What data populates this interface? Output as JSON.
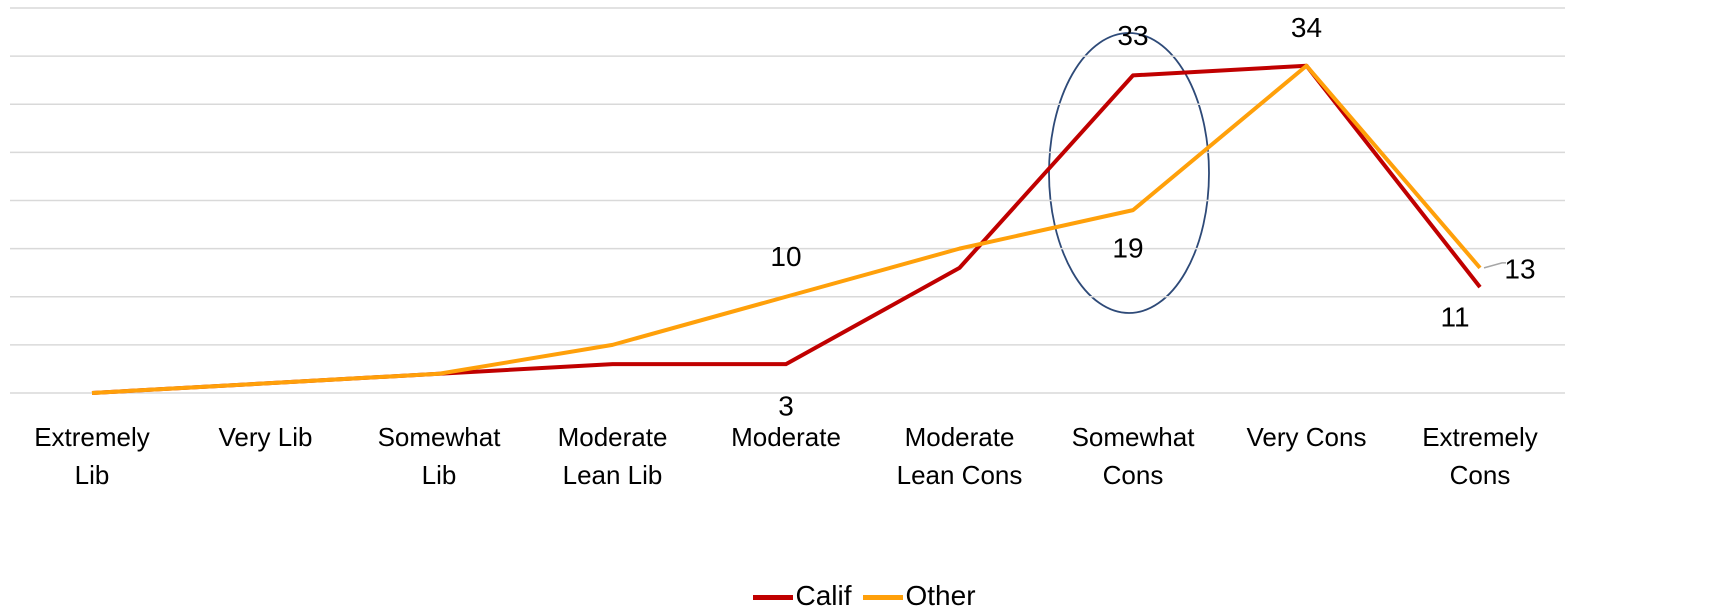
{
  "chart_data": {
    "type": "line",
    "categories": [
      "Extremely Lib",
      "Very Lib",
      "Somewhat Lib",
      "Moderate Lean Lib",
      "Moderate",
      "Moderate Lean Cons",
      "Somewhat Cons",
      "Very Cons",
      "Extremely Cons"
    ],
    "series": [
      {
        "name": "Calif",
        "color": "#c00000",
        "values": [
          0,
          1,
          2,
          3,
          3,
          13,
          33,
          34,
          11
        ],
        "value_labels": [
          null,
          null,
          null,
          null,
          "3",
          null,
          "33",
          null,
          "11"
        ]
      },
      {
        "name": "Other",
        "color": "#ffa00a",
        "values": [
          0,
          1,
          2,
          5,
          10,
          15,
          19,
          34,
          13
        ],
        "value_labels": [
          null,
          null,
          null,
          null,
          "10",
          null,
          "19",
          "34",
          "13"
        ]
      }
    ],
    "ylim": [
      0,
      40
    ],
    "yticks": [
      0,
      5,
      10,
      15,
      20,
      25,
      30,
      35,
      40
    ],
    "grid": true,
    "legend": "bottom"
  }
}
